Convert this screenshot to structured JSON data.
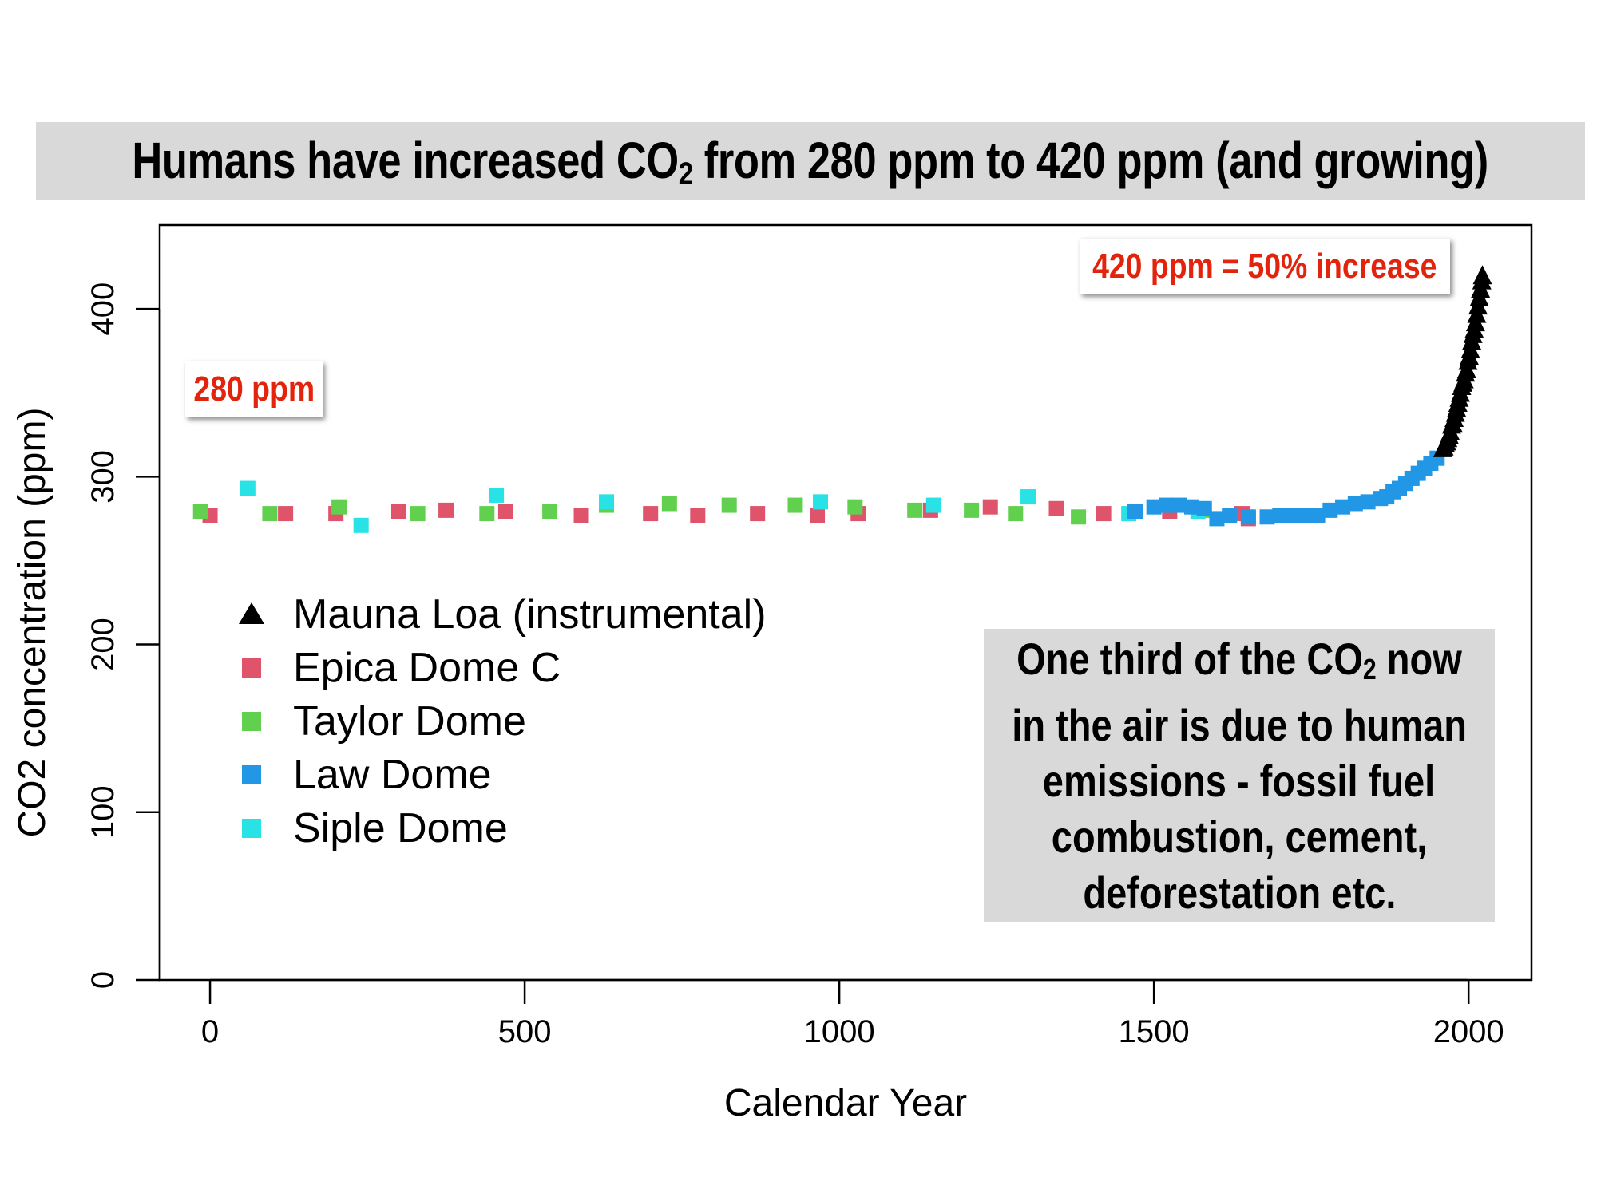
{
  "title": {
    "pre": "Humans have increased CO",
    "sub": "2",
    "post": " from 280 ppm to 420 ppm (and growing)"
  },
  "annotations": {
    "baseline": "280 ppm",
    "current": "420 ppm = 50% increase"
  },
  "info_box": {
    "line1_pre": "One third of the CO",
    "line1_sub": "2",
    "line1_post": " now",
    "line2": "in the air is due to human",
    "line3": "emissions - fossil fuel",
    "line4": "combustion, cement,",
    "line5": "deforestation etc."
  },
  "colors": {
    "mauna_loa": "#000000",
    "epica": "#df536b",
    "taylor": "#61d04f",
    "law": "#2297e6",
    "siple": "#28e2e5",
    "title_bg": "#d9d9d9",
    "annotation_text": "#e3240c"
  },
  "chart_data": {
    "type": "scatter",
    "xlabel": "Calendar Year",
    "ylabel": "CO2 concentration (ppm)",
    "xlim": [
      -80,
      2100
    ],
    "ylim": [
      0,
      450
    ],
    "xticks": [
      0,
      500,
      1000,
      1500,
      2000
    ],
    "yticks": [
      0,
      100,
      200,
      300,
      400
    ],
    "grid": false,
    "legend_position": "left",
    "series": [
      {
        "name": "Mauna Loa (instrumental)",
        "marker": "triangle",
        "color": "#000000",
        "points": [
          [
            1959,
            316
          ],
          [
            1961,
            317
          ],
          [
            1963,
            319
          ],
          [
            1965,
            320
          ],
          [
            1967,
            322
          ],
          [
            1969,
            324
          ],
          [
            1971,
            326
          ],
          [
            1973,
            330
          ],
          [
            1975,
            331
          ],
          [
            1977,
            334
          ],
          [
            1979,
            337
          ],
          [
            1981,
            340
          ],
          [
            1983,
            343
          ],
          [
            1985,
            346
          ],
          [
            1987,
            349
          ],
          [
            1989,
            353
          ],
          [
            1991,
            355
          ],
          [
            1993,
            357
          ],
          [
            1995,
            361
          ],
          [
            1997,
            363
          ],
          [
            1999,
            368
          ],
          [
            2001,
            371
          ],
          [
            2003,
            375
          ],
          [
            2005,
            380
          ],
          [
            2007,
            384
          ],
          [
            2009,
            387
          ],
          [
            2011,
            391
          ],
          [
            2013,
            396
          ],
          [
            2015,
            401
          ],
          [
            2017,
            406
          ],
          [
            2019,
            411
          ],
          [
            2021,
            416
          ],
          [
            2022,
            419
          ]
        ]
      },
      {
        "name": "Epica Dome C",
        "marker": "square",
        "color": "#df536b",
        "points": [
          [
            0,
            277
          ],
          [
            120,
            278
          ],
          [
            200,
            278
          ],
          [
            300,
            279
          ],
          [
            375,
            280
          ],
          [
            470,
            279
          ],
          [
            590,
            277
          ],
          [
            700,
            278
          ],
          [
            775,
            277
          ],
          [
            870,
            278
          ],
          [
            965,
            277
          ],
          [
            1030,
            278
          ],
          [
            1145,
            280
          ],
          [
            1240,
            282
          ],
          [
            1345,
            281
          ],
          [
            1420,
            278
          ],
          [
            1525,
            279
          ],
          [
            1640,
            278
          ],
          [
            1650,
            275
          ]
        ]
      },
      {
        "name": "Taylor Dome",
        "marker": "square",
        "color": "#61d04f",
        "points": [
          [
            -15,
            279
          ],
          [
            95,
            278
          ],
          [
            205,
            282
          ],
          [
            330,
            278
          ],
          [
            440,
            278
          ],
          [
            540,
            279
          ],
          [
            630,
            283
          ],
          [
            730,
            284
          ],
          [
            825,
            283
          ],
          [
            930,
            283
          ],
          [
            1025,
            282
          ],
          [
            1120,
            280
          ],
          [
            1210,
            280
          ],
          [
            1280,
            278
          ],
          [
            1380,
            276
          ],
          [
            1580,
            280
          ]
        ]
      },
      {
        "name": "Law Dome",
        "marker": "square",
        "color": "#2297e6",
        "points": [
          [
            1470,
            279
          ],
          [
            1500,
            282
          ],
          [
            1520,
            283
          ],
          [
            1540,
            283
          ],
          [
            1560,
            282
          ],
          [
            1580,
            281
          ],
          [
            1600,
            275
          ],
          [
            1620,
            277
          ],
          [
            1650,
            276
          ],
          [
            1680,
            276
          ],
          [
            1700,
            277
          ],
          [
            1720,
            277
          ],
          [
            1740,
            277
          ],
          [
            1760,
            277
          ],
          [
            1780,
            280
          ],
          [
            1800,
            282
          ],
          [
            1820,
            284
          ],
          [
            1840,
            285
          ],
          [
            1860,
            287
          ],
          [
            1870,
            288
          ],
          [
            1880,
            291
          ],
          [
            1890,
            293
          ],
          [
            1900,
            296
          ],
          [
            1910,
            299
          ],
          [
            1920,
            302
          ],
          [
            1930,
            305
          ],
          [
            1940,
            308
          ],
          [
            1950,
            311
          ]
        ]
      },
      {
        "name": "Siple Dome",
        "marker": "square",
        "color": "#28e2e5",
        "points": [
          [
            60,
            293
          ],
          [
            240,
            271
          ],
          [
            455,
            289
          ],
          [
            630,
            285
          ],
          [
            970,
            285
          ],
          [
            1150,
            283
          ],
          [
            1300,
            288
          ],
          [
            1460,
            278
          ],
          [
            1570,
            279
          ]
        ]
      }
    ]
  }
}
